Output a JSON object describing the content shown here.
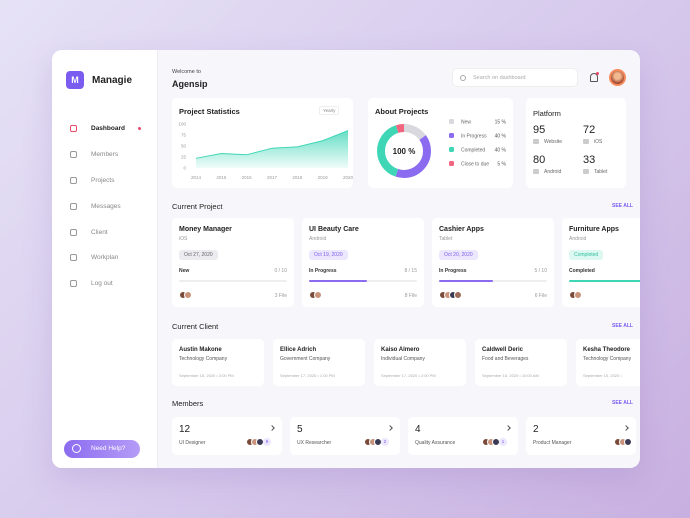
{
  "sidebar": {
    "logo": "M",
    "brand": "Managie",
    "nav": [
      "Dashboard",
      "Members",
      "Projects",
      "Messages",
      "Client",
      "Workplan",
      "Log out"
    ],
    "help": "Need Help?"
  },
  "header": {
    "greeting": "Welcome to",
    "workspace": "Agensip",
    "search_placeholder": "Search on dashboard"
  },
  "project_statistics": {
    "title": "Project Statistics",
    "period": "Yearly",
    "years": [
      "2014",
      "2015",
      "2016",
      "2017",
      "2018",
      "2019",
      "2020"
    ],
    "values": [
      22,
      33,
      30,
      45,
      48,
      62,
      85
    ],
    "ylim": [
      0,
      100
    ],
    "yticks": [
      0,
      25,
      50,
      75,
      100
    ]
  },
  "about_projects": {
    "title": "About Projects",
    "center_label": "100 %",
    "items": [
      {
        "name": "New",
        "value": 15,
        "value_label": "15 %",
        "color": "#d8d8de"
      },
      {
        "name": "In Progress",
        "value": 40,
        "value_label": "40 %",
        "color": "#8b6cf0"
      },
      {
        "name": "Completed",
        "value": 40,
        "value_label": "40 %",
        "color": "#3fd6b6"
      },
      {
        "name": "Close to due",
        "value": 5,
        "value_label": "5 %",
        "color": "#f2657f"
      }
    ]
  },
  "platform": {
    "title": "Platform",
    "items": [
      {
        "count": "95",
        "name": "Website"
      },
      {
        "count": "72",
        "name": "iOS"
      },
      {
        "count": "80",
        "name": "Android"
      },
      {
        "count": "33",
        "name": "Tablet"
      }
    ]
  },
  "current_project": {
    "title": "Current Project",
    "see_all": "SEE ALL",
    "projects": [
      {
        "name": "Money Manager",
        "platform": "iOS",
        "tag": "Oct 27, 2020",
        "tag_color": "#ececf0",
        "status": "New",
        "progress": "0 / 10",
        "bar_color": "#8b6cf0",
        "files": "3 File"
      },
      {
        "name": "UI Beauty Care",
        "platform": "Android",
        "tag": "Oct 19, 2020",
        "tag_color": "#ece7fd",
        "status": "In Progress",
        "progress": "8 / 15",
        "bar_color": "#8b6cf0",
        "files": "8 File"
      },
      {
        "name": "Cashier Apps",
        "platform": "Tablet",
        "tag": "Oct 20, 2020",
        "tag_color": "#ece7fd",
        "status": "In Progress",
        "progress": "5 / 10",
        "bar_color": "#8b6cf0",
        "files": "6 File"
      },
      {
        "name": "Furniture Apps",
        "platform": "Android",
        "tag": "Completed",
        "tag_color": "#dcf8f1",
        "status": "Completed",
        "bar_color": "#3fd6b6"
      }
    ]
  },
  "current_client": {
    "title": "Current Client",
    "see_all": "SEE ALL",
    "clients": [
      {
        "name": "Austin Makone",
        "company": "Technology Company",
        "date": "September 18, 2020 • 3:00 PM"
      },
      {
        "name": "Ellice Adrich",
        "company": "Government Company",
        "date": "September 17, 2020 • 1:00 PM"
      },
      {
        "name": "Kaiso Almero",
        "company": "Individual Company",
        "date": "September 17, 2020 • 2:00 PM"
      },
      {
        "name": "Caldwell Deric",
        "company": "Food and Beverages",
        "date": "September 16, 2020 • 10:00 AM"
      },
      {
        "name": "Kesha Theodore",
        "company": "Technology Company",
        "date": "September 15, 2020 •"
      }
    ]
  },
  "members": {
    "title": "Members",
    "see_all": "SEE ALL",
    "groups": [
      {
        "count": "12",
        "role": "UI Designer",
        "extra": "9"
      },
      {
        "count": "5",
        "role": "UX Researcher",
        "extra": "2"
      },
      {
        "count": "4",
        "role": "Quality Assurance",
        "extra": "1"
      },
      {
        "count": "2",
        "role": "Product Manager"
      }
    ]
  }
}
